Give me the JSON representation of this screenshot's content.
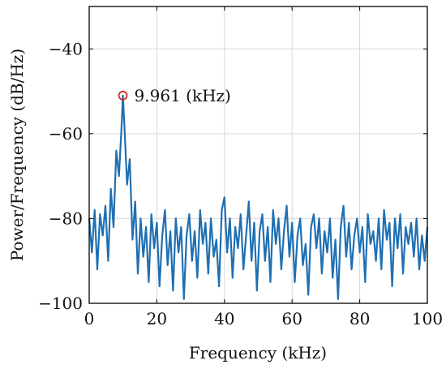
{
  "chart_data": {
    "type": "line",
    "title": "",
    "xlabel": "Frequency (kHz)",
    "ylabel": "Power/Frequency (dB/Hz)",
    "xlim": [
      0,
      100
    ],
    "ylim": [
      -100,
      -30
    ],
    "xticks": [
      0,
      20,
      40,
      60,
      80,
      100
    ],
    "xtick_labels": [
      "0",
      "20",
      "40",
      "60",
      "80",
      "100"
    ],
    "yticks": [
      -100,
      -80,
      -60,
      -40
    ],
    "ytick_labels": [
      "−100",
      "−80",
      "−60",
      "−40"
    ],
    "grid": true,
    "legend": "none",
    "series": [
      {
        "color": "#1f6fb2",
        "x": [
          0,
          0.8,
          1.6,
          2.4,
          3.2,
          4.0,
          4.8,
          5.6,
          6.4,
          7.2,
          8.0,
          8.8,
          9.6,
          9.961,
          10.4,
          11.2,
          12.0,
          12.8,
          13.6,
          14.4,
          15.2,
          16.0,
          16.8,
          17.6,
          18.4,
          19.2,
          20.0,
          20.8,
          21.6,
          22.4,
          23.2,
          24.0,
          24.8,
          25.6,
          26.4,
          27.2,
          28.0,
          28.8,
          29.6,
          30.4,
          31.2,
          32.0,
          32.8,
          33.6,
          34.4,
          35.2,
          36.0,
          36.8,
          37.6,
          38.4,
          39.2,
          40.0,
          40.8,
          41.6,
          42.4,
          43.2,
          44.0,
          44.8,
          45.6,
          46.4,
          47.2,
          48.0,
          48.8,
          49.6,
          50.4,
          51.2,
          52.0,
          52.8,
          53.6,
          54.4,
          55.2,
          56.0,
          56.8,
          57.6,
          58.4,
          59.2,
          60.0,
          60.8,
          61.6,
          62.4,
          63.2,
          64.0,
          64.8,
          65.6,
          66.4,
          67.2,
          68.0,
          68.8,
          69.6,
          70.4,
          71.2,
          72.0,
          72.8,
          73.6,
          74.4,
          75.2,
          76.0,
          76.8,
          77.6,
          78.4,
          79.2,
          80.0,
          80.8,
          81.6,
          82.4,
          83.2,
          84.0,
          84.8,
          85.6,
          86.4,
          87.2,
          88.0,
          88.8,
          89.6,
          90.4,
          91.2,
          92.0,
          92.8,
          93.6,
          94.4,
          95.2,
          96.0,
          96.8,
          97.6,
          98.4,
          99.2,
          100
        ],
        "y": [
          -80,
          -88,
          -78,
          -92,
          -79,
          -84,
          -77,
          -90,
          -73,
          -82,
          -64,
          -70,
          -58,
          -51,
          -58,
          -72,
          -66,
          -85,
          -76,
          -93,
          -80,
          -89,
          -82,
          -95,
          -79,
          -87,
          -81,
          -96,
          -84,
          -78,
          -91,
          -83,
          -97,
          -80,
          -88,
          -82,
          -99,
          -84,
          -79,
          -90,
          -83,
          -94,
          -78,
          -86,
          -81,
          -93,
          -80,
          -89,
          -85,
          -96,
          -78,
          -75,
          -88,
          -80,
          -94,
          -82,
          -87,
          -79,
          -92,
          -84,
          -76,
          -90,
          -81,
          -97,
          -83,
          -79,
          -90,
          -82,
          -95,
          -78,
          -86,
          -80,
          -92,
          -83,
          -77,
          -89,
          -81,
          -95,
          -84,
          -80,
          -91,
          -86,
          -98,
          -82,
          -79,
          -87,
          -80,
          -93,
          -83,
          -88,
          -80,
          -94,
          -85,
          -99,
          -82,
          -77,
          -89,
          -81,
          -92,
          -84,
          -80,
          -88,
          -82,
          -95,
          -79,
          -86,
          -83,
          -90,
          -80,
          -92,
          -78,
          -85,
          -81,
          -96,
          -80,
          -87,
          -79,
          -93,
          -82,
          -86,
          -81,
          -89,
          -80,
          -92,
          -84,
          -90,
          -82
        ]
      }
    ],
    "annotations": [
      {
        "x": 9.961,
        "y": -51,
        "text": "9.961 (kHz)",
        "marker": "circle",
        "marker_color": "#d62728"
      }
    ]
  }
}
